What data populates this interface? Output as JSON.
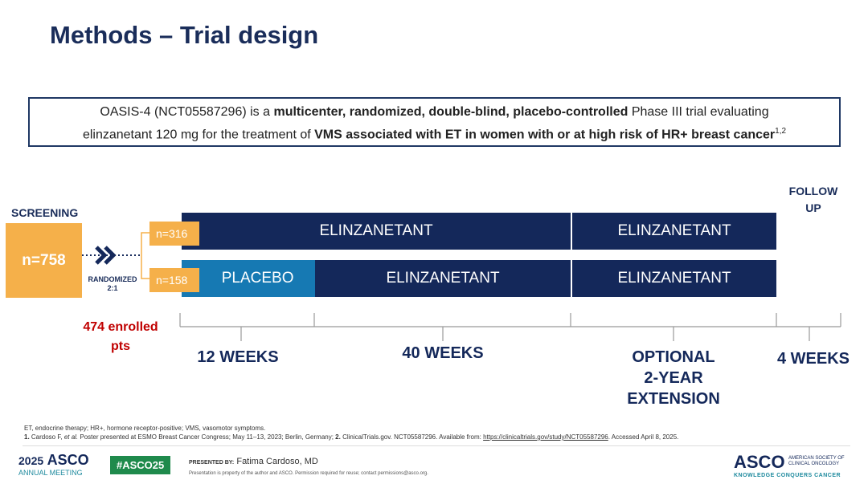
{
  "title": "Methods – Trial design",
  "summary": {
    "lines": [
      [
        {
          "text": "OASIS-4 (NCT05587296) is a ",
          "bold": false
        },
        {
          "text": "multicenter, randomized, double-blind, placebo-controlled",
          "bold": true
        },
        {
          "text": " Phase III trial evaluating",
          "bold": false
        }
      ],
      [
        {
          "text": "elinzanetant 120 mg for the treatment of ",
          "bold": false
        },
        {
          "text": "VMS associated with ET in women with or at high risk of HR+ breast cancer",
          "bold": true
        }
      ]
    ],
    "superscript": "1,2"
  },
  "screening": {
    "label": "SCREENING",
    "n": "n=758"
  },
  "randomized": [
    "RANDOMIZED",
    "2:1"
  ],
  "enrolled": [
    "474 enrolled",
    "pts"
  ],
  "follow_up": [
    "FOLLOW",
    "UP"
  ],
  "arms": [
    {
      "n": "n=316",
      "segments": [
        "ELINZANETANT",
        "ELINZANETANT"
      ]
    },
    {
      "n": "n=158",
      "segments": [
        "PLACEBO",
        "ELINZANETANT",
        "ELINZANETANT"
      ]
    }
  ],
  "periods": [
    [
      "12 WEEKS"
    ],
    [
      "40 WEEKS"
    ],
    [
      "OPTIONAL",
      "2-YEAR",
      "EXTENSION"
    ],
    [
      "4 WEEKS"
    ]
  ],
  "footnotes": {
    "abbreviations": "ET, endocrine therapy; HR+, hormone receptor-positive; VMS, vasomotor symptoms.",
    "references": [
      {
        "text": "1.",
        "style": "bold"
      },
      {
        "text": " Cardoso F, ",
        "style": "normal"
      },
      {
        "text": "et al.",
        "style": "italic"
      },
      {
        "text": " Poster presented at ESMO Breast Cancer Congress; May 11–13, 2023; Berlin, Germany; ",
        "style": "normal"
      },
      {
        "text": "2.",
        "style": "bold"
      },
      {
        "text": " ClinicalTrials.gov. NCT05587296. Available from: ",
        "style": "normal"
      },
      {
        "text": "https://clinicaltrials.gov/study/NCT05587296",
        "style": "link"
      },
      {
        "text": ". Accessed April 8, 2025.",
        "style": "normal"
      }
    ]
  },
  "footer": {
    "meeting_year": "2025",
    "meeting_brand": "ASCO",
    "meeting_name": "ANNUAL MEETING",
    "hashtag": "#ASCO25",
    "presented_by": "PRESENTED BY:",
    "presenter": "Fatima Cardoso, MD",
    "notice": "Presentation is property of the author and ASCO. Permission required for reuse; contact permissions@asco.org.",
    "logo": "ASCO",
    "society_lines": [
      "AMERICAN SOCIETY OF",
      "CLINICAL ONCOLOGY"
    ],
    "tagline": "KNOWLEDGE CONQUERS CANCER"
  }
}
